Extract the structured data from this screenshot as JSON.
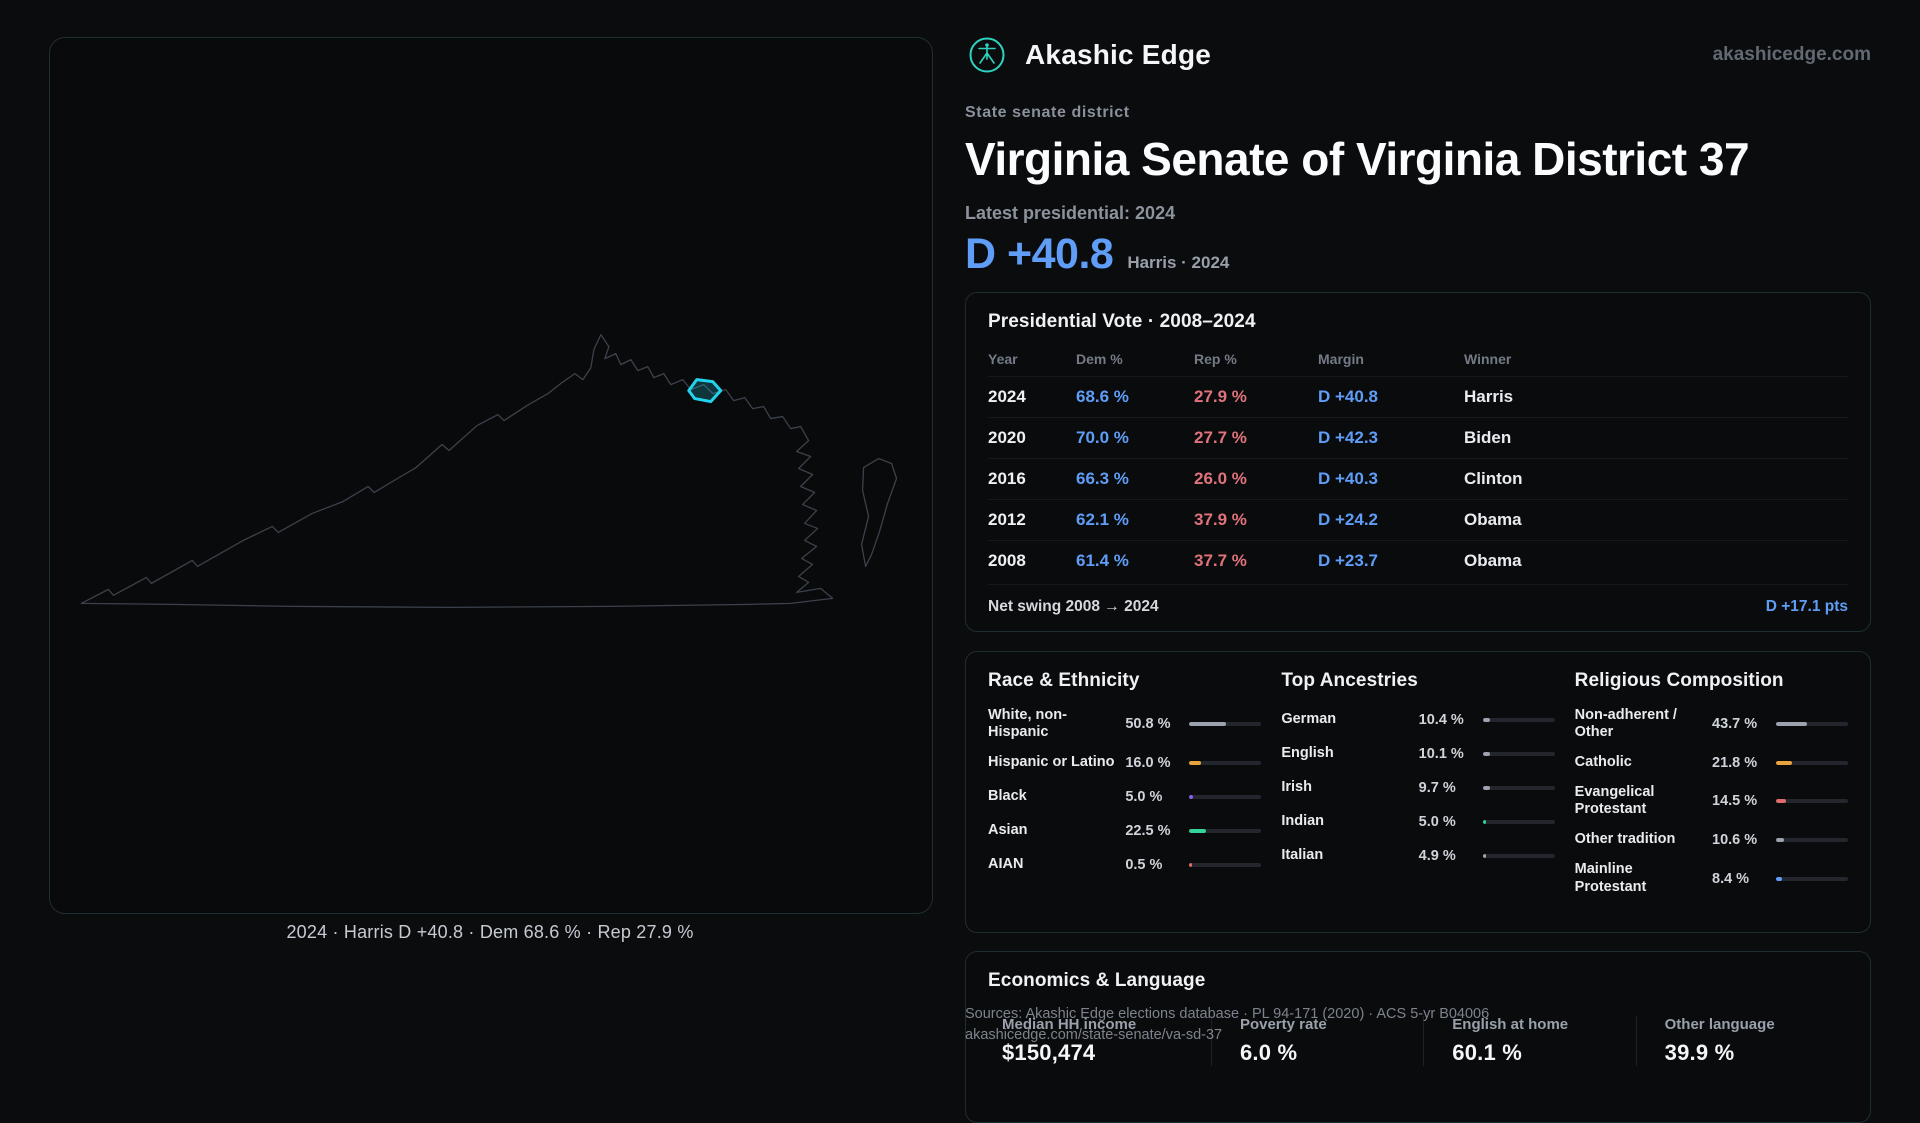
{
  "colors": {
    "dem": "#5f9df7",
    "rep": "#e0737c",
    "accent": "#22d3ee",
    "brand": "#2dd4bf"
  },
  "brand": {
    "name": "Akashic Edge",
    "domain": "akashicedge.com"
  },
  "page": {
    "eyebrow": "State senate district",
    "title": "Virginia Senate of Virginia District 37",
    "latest_label": "Latest presidential: 2024",
    "headline_margin": "D +40.8",
    "headline_context": "Harris · 2024"
  },
  "map": {
    "caption": "2024 · Harris D +40.8 · Dem 68.6 % · Rep 27.9 %"
  },
  "presidential": {
    "title": "Presidential Vote · 2008–2024",
    "columns": [
      "Year",
      "Dem %",
      "Rep %",
      "Margin",
      "Winner"
    ],
    "rows": [
      {
        "year": "2024",
        "dem": "68.6 %",
        "rep": "27.9 %",
        "margin": "D +40.8",
        "winner": "Harris"
      },
      {
        "year": "2020",
        "dem": "70.0 %",
        "rep": "27.7 %",
        "margin": "D +42.3",
        "winner": "Biden"
      },
      {
        "year": "2016",
        "dem": "66.3 %",
        "rep": "26.0 %",
        "margin": "D +40.3",
        "winner": "Clinton"
      },
      {
        "year": "2012",
        "dem": "62.1 %",
        "rep": "37.9 %",
        "margin": "D +24.2",
        "winner": "Obama"
      },
      {
        "year": "2008",
        "dem": "61.4 %",
        "rep": "37.7 %",
        "margin": "D +23.7",
        "winner": "Obama"
      }
    ],
    "net_swing_label": "Net swing 2008 → 2024",
    "net_swing_value": "D +17.1 pts"
  },
  "demographics": {
    "race": {
      "title": "Race & Ethnicity",
      "items": [
        {
          "label": "White, non-Hispanic",
          "value": "50.8 %",
          "pct": 50.8,
          "color": "#9ca3af"
        },
        {
          "label": "Hispanic or Latino",
          "value": "16.0 %",
          "pct": 16.0,
          "color": "#e8a33d"
        },
        {
          "label": "Black",
          "value": "5.0 %",
          "pct": 5.0,
          "color": "#8b5cf6"
        },
        {
          "label": "Asian",
          "value": "22.5 %",
          "pct": 22.5,
          "color": "#34d399"
        },
        {
          "label": "AIAN",
          "value": "0.5 %",
          "pct": 0.5,
          "color": "#e06c5a"
        }
      ]
    },
    "ancestries": {
      "title": "Top Ancestries",
      "items": [
        {
          "label": "German",
          "value": "10.4 %",
          "pct": 10.4,
          "color": "#9ca3af"
        },
        {
          "label": "English",
          "value": "10.1 %",
          "pct": 10.1,
          "color": "#9ca3af"
        },
        {
          "label": "Irish",
          "value": "9.7 %",
          "pct": 9.7,
          "color": "#9ca3af"
        },
        {
          "label": "Indian",
          "value": "5.0 %",
          "pct": 5.0,
          "color": "#34d399"
        },
        {
          "label": "Italian",
          "value": "4.9 %",
          "pct": 4.9,
          "color": "#9ca3af"
        }
      ]
    },
    "religion": {
      "title": "Religious Composition",
      "items": [
        {
          "label": "Non-adherent / Other",
          "value": "43.7 %",
          "pct": 43.7,
          "color": "#9ca3af"
        },
        {
          "label": "Catholic",
          "value": "21.8 %",
          "pct": 21.8,
          "color": "#e8a33d"
        },
        {
          "label": "Evangelical Protestant",
          "value": "14.5 %",
          "pct": 14.5,
          "color": "#e06c6c"
        },
        {
          "label": "Other tradition",
          "value": "10.6 %",
          "pct": 10.6,
          "color": "#9ca3af"
        },
        {
          "label": "Mainline Protestant",
          "value": "8.4 %",
          "pct": 8.4,
          "color": "#5f9df7"
        }
      ]
    }
  },
  "economics": {
    "title": "Economics & Language",
    "stats": [
      {
        "label": "Median HH income",
        "value": "$150,474"
      },
      {
        "label": "Poverty rate",
        "value": "6.0 %"
      },
      {
        "label": "English at home",
        "value": "60.1 %"
      },
      {
        "label": "Other language",
        "value": "39.9 %"
      }
    ]
  },
  "footer": {
    "sources": "Sources: Akashic Edge elections database · PL 94-171 (2020) · ACS 5-yr B04006",
    "permalink": "akashicedge.com/state-senate/va-sd-37"
  }
}
